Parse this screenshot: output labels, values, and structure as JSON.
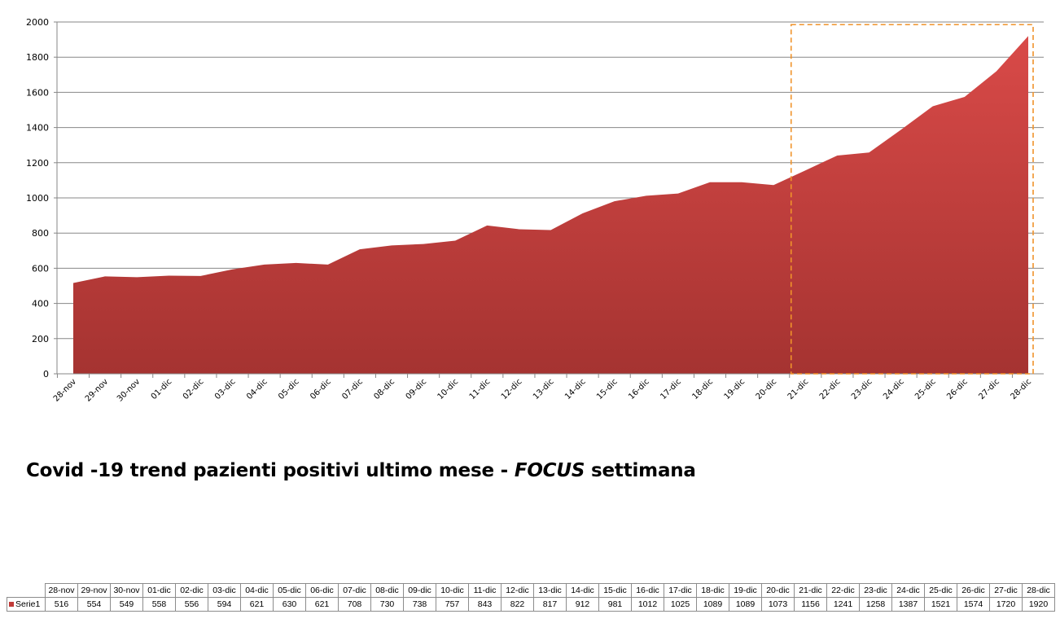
{
  "chart_data": {
    "type": "area",
    "title": "Covid -19 trend pazienti positivi ultimo mese - FOCUS settimana",
    "title_parts": {
      "before": "Covid -19 trend pazienti positivi ultimo mese - ",
      "emphasis": "FOCUS",
      "after": " settimana"
    },
    "categories": [
      "28-nov",
      "29-nov",
      "30-nov",
      "01-dic",
      "02-dic",
      "03-dic",
      "04-dic",
      "05-dic",
      "06-dic",
      "07-dic",
      "08-dic",
      "09-dic",
      "10-dic",
      "11-dic",
      "12-dic",
      "13-dic",
      "14-dic",
      "15-dic",
      "16-dic",
      "17-dic",
      "18-dic",
      "19-dic",
      "20-dic",
      "21-dic",
      "22-dic",
      "23-dic",
      "24-dic",
      "25-dic",
      "26-dic",
      "27-dic",
      "28-dic"
    ],
    "series": [
      {
        "name": "Serie1",
        "values": [
          516,
          554,
          549,
          558,
          556,
          594,
          621,
          630,
          621,
          708,
          730,
          738,
          757,
          843,
          822,
          817,
          912,
          981,
          1012,
          1025,
          1089,
          1089,
          1073,
          1156,
          1241,
          1258,
          1387,
          1521,
          1574,
          1720,
          1920
        ]
      }
    ],
    "ylim": [
      0,
      2000
    ],
    "yticks": [
      0,
      200,
      400,
      600,
      800,
      1000,
      1200,
      1400,
      1600,
      1800,
      2000
    ],
    "grid": true,
    "focus_range": [
      "21-dic",
      "28-dic"
    ],
    "colors": {
      "area_top": "#d94a48",
      "area_bottom": "#a53331",
      "focus_box": "#f0932b",
      "grid": "#878787"
    }
  }
}
